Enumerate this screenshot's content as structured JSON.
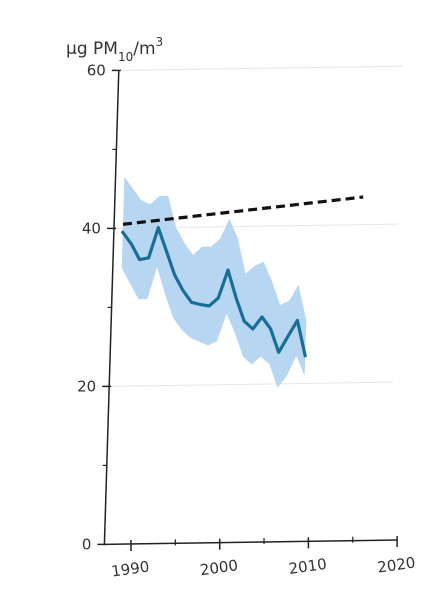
{
  "chart_data": {
    "type": "line",
    "ylabel": {
      "prefix": "μg PM",
      "subscript": "10",
      "suffix": "/m",
      "superscript": "3"
    },
    "ylim": [
      0,
      60
    ],
    "xlim": [
      1987,
      2020
    ],
    "y_ticks": [
      {
        "value": 0,
        "label": "0"
      },
      {
        "value": 20,
        "label": "20"
      },
      {
        "value": 40,
        "label": "40"
      },
      {
        "value": 60,
        "label": "60"
      }
    ],
    "x_ticks": [
      {
        "value": 1990,
        "label": "1990"
      },
      {
        "value": 2000,
        "label": "2000"
      },
      {
        "value": 2010,
        "label": "2010"
      },
      {
        "value": 2020,
        "label": "2020"
      }
    ],
    "y_minor_ticks": [
      10,
      30,
      50
    ],
    "x_minor_ticks": [
      1995,
      2005,
      2015
    ],
    "grid": true,
    "reference_line": {
      "style": "dashed",
      "x": [
        1988,
        2015
      ],
      "y": [
        40.5,
        43.5
      ],
      "color": "#111111"
    },
    "series": [
      {
        "style": "line-with-band",
        "color": "#1a6e96",
        "band_color": "#a9cfee",
        "x": [
          1988,
          1989,
          1990,
          1991,
          1992,
          1993,
          1994,
          1995,
          1996,
          1997,
          1998,
          1999,
          2000,
          2001,
          2002,
          2003,
          2004,
          2005,
          2006,
          2007,
          2008,
          2009
        ],
        "y": [
          39.5,
          38,
          36,
          36.2,
          40,
          37,
          34,
          32,
          30.5,
          30.2,
          30,
          31,
          34.5,
          31,
          28,
          27,
          28.5,
          27,
          24,
          26,
          28,
          23.5
        ],
        "lower": [
          35,
          33,
          31,
          31,
          35,
          31.5,
          28.5,
          27,
          26,
          25.5,
          25,
          25.5,
          29,
          26.5,
          23.5,
          22.5,
          23.5,
          22.5,
          19.5,
          21,
          23.5,
          21
        ],
        "upper": [
          46.5,
          45,
          43.5,
          43,
          44,
          44,
          40,
          38,
          36.5,
          37.5,
          37.5,
          38.5,
          41,
          38.5,
          34,
          35,
          35.5,
          33,
          30,
          30.5,
          32.5,
          28
        ]
      }
    ]
  }
}
